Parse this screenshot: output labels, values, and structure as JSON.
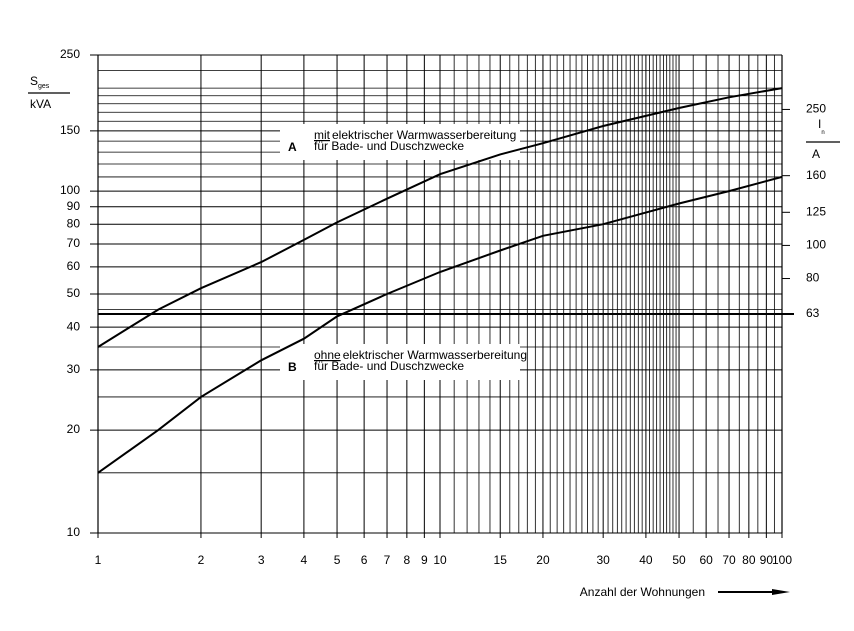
{
  "chart_data": {
    "type": "line",
    "y_label": {
      "symbol": "S",
      "sub": "ges",
      "unit": "kVA"
    },
    "y2_label": {
      "symbol": "I",
      "sub": "n",
      "unit": "A"
    },
    "x_label": "Anzahl der Wohnungen",
    "log_x": true,
    "log_y": true,
    "grid": true,
    "xlim": [
      1,
      100
    ],
    "xticks": [
      1,
      2,
      3,
      4,
      5,
      6,
      7,
      8,
      9,
      10,
      15,
      20,
      30,
      40,
      50,
      60,
      70,
      80,
      90,
      100
    ],
    "x_minor_grid": [
      11,
      12,
      13,
      14,
      16,
      17,
      18,
      19,
      21,
      22,
      23,
      24,
      25,
      26,
      27,
      28,
      29,
      31,
      32,
      33,
      34,
      35,
      36,
      37,
      38,
      39,
      41,
      42,
      43,
      44,
      45,
      46,
      47,
      48,
      49,
      55,
      65,
      75,
      85,
      95
    ],
    "ylim": [
      10,
      250
    ],
    "yticks": [
      10,
      20,
      30,
      40,
      50,
      60,
      70,
      80,
      90,
      100,
      150,
      250
    ],
    "y_minor_grid": [
      15,
      25,
      35,
      45,
      110,
      120,
      130,
      140,
      160,
      170,
      180,
      190,
      200,
      225
    ],
    "y2lim": [
      14.4,
      360.8
    ],
    "y2ticks": [
      63,
      80,
      100,
      125,
      160,
      250
    ],
    "reference_line_y2": 63,
    "series": [
      {
        "name": "A",
        "color": "#000000",
        "x": [
          1,
          1.5,
          2,
          3,
          4,
          5,
          7,
          10,
          15,
          20,
          30,
          50,
          70,
          100
        ],
        "values": [
          35,
          45,
          52,
          62,
          72,
          81,
          95,
          112,
          128,
          138,
          155,
          175,
          188,
          200
        ],
        "note": {
          "emph": "mit",
          "line1": "elektrischer Warmwasserbereitung",
          "line2": "für Bade- und Duschzwecke"
        }
      },
      {
        "name": "B",
        "color": "#000000",
        "x": [
          1,
          1.5,
          2,
          3,
          4,
          5,
          7,
          10,
          15,
          20,
          30,
          50,
          70,
          100
        ],
        "values": [
          15,
          20,
          25,
          32,
          37,
          43,
          50,
          58,
          67,
          74,
          80,
          92,
          100,
          110
        ],
        "note": {
          "emph": "ohne",
          "line1": "elektrischer Warmwasserbereitung",
          "line2": "für Bade- und Duschzwecke"
        }
      }
    ]
  }
}
